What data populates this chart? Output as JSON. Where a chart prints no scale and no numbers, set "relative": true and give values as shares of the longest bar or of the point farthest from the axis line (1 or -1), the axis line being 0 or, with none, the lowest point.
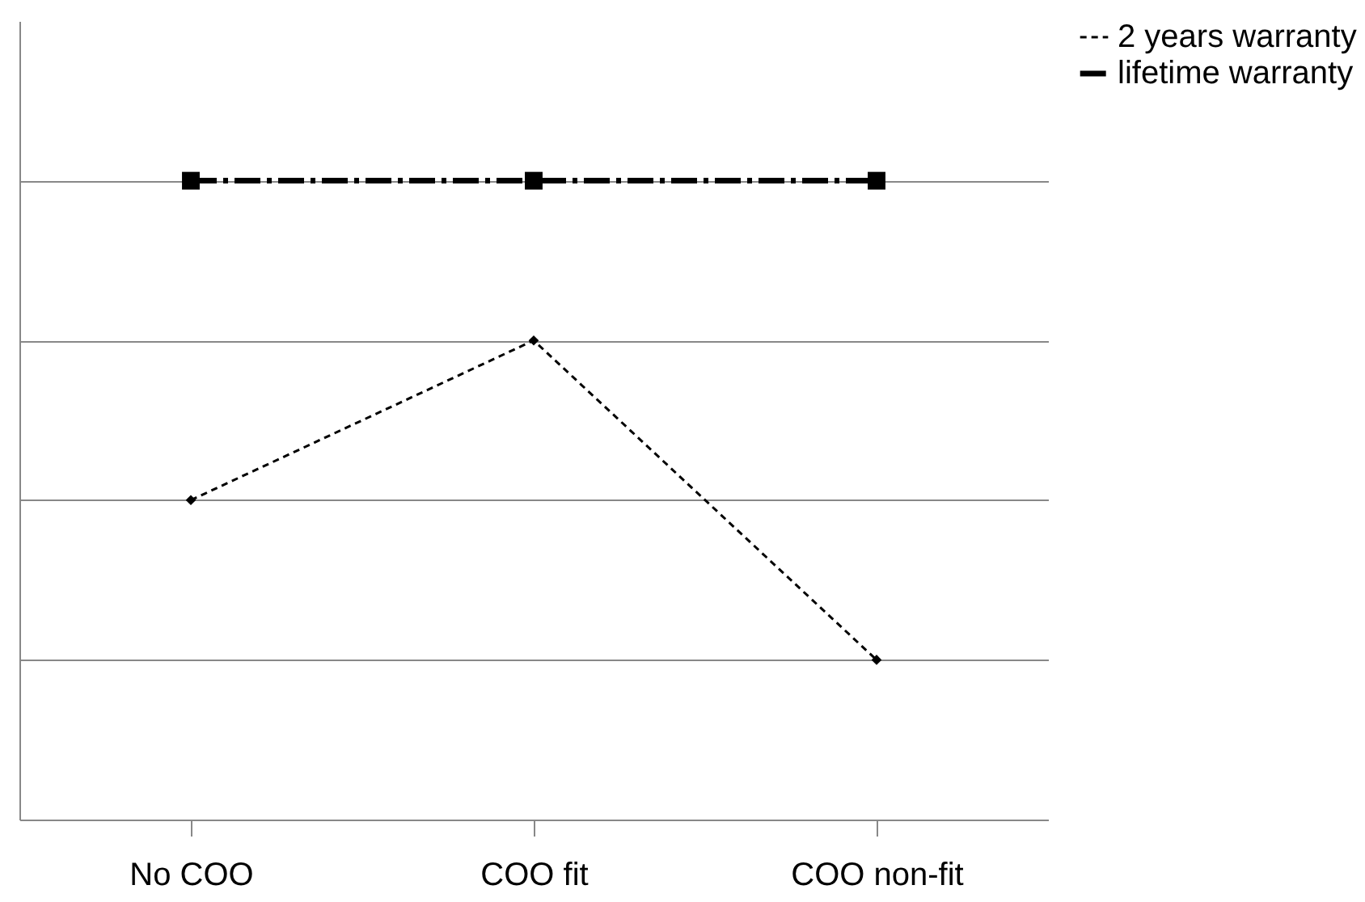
{
  "chart_data": {
    "type": "line",
    "relative": true,
    "categories": [
      "No COO",
      "COO fit",
      "COO non-fit"
    ],
    "series": [
      {
        "name": "2 years warranty",
        "color": "#000000",
        "values": [
          0.5,
          0.75,
          0.25
        ],
        "marker": "diamond",
        "line_style": "dashed"
      },
      {
        "name": "lifetime warranty",
        "color": "#000000",
        "values": [
          1,
          1,
          1
        ],
        "marker": "square",
        "line_style": "dashdot"
      }
    ],
    "grid": "y",
    "legend": "right"
  }
}
